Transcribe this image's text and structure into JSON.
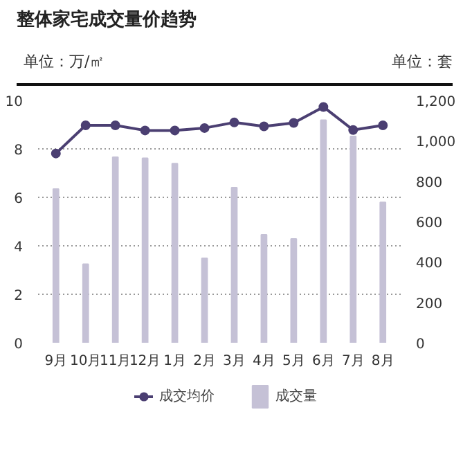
{
  "chart_data": {
    "type": "bar",
    "title": "整体家宅成交量价趋势",
    "ylabel": "单位：万/㎡",
    "y2label": "单位：套",
    "categories": [
      "9月",
      "10月",
      "11月",
      "12月",
      "1月",
      "2月",
      "3月",
      "4月",
      "5月",
      "6月",
      "7月",
      "8月"
    ],
    "series": [
      {
        "name": "成交均价",
        "type": "line",
        "color": "#4b3f72",
        "marker": "circle",
        "values": [
          7.81,
          8.97,
          8.97,
          8.76,
          8.76,
          8.86,
          9.09,
          8.93,
          9.07,
          9.73,
          8.78,
          8.97
        ]
      },
      {
        "name": "成交量",
        "axis": "y2",
        "color": "#c5c1d6",
        "values": [
          761,
          389,
          919,
          914,
          887,
          418,
          768,
          535,
          514,
          1102,
          1022,
          695
        ]
      }
    ],
    "ylim": [
      0,
      10
    ],
    "yticks": [
      0,
      2,
      4,
      6,
      8,
      10
    ],
    "y2lim": [
      0,
      1200
    ],
    "y2ticks": [
      0,
      200,
      400,
      600,
      800,
      {
        "value": 1000,
        "label": "1,000"
      },
      {
        "value": 1200,
        "label": "1,200"
      }
    ],
    "grid": "y",
    "legend": "bottom"
  }
}
